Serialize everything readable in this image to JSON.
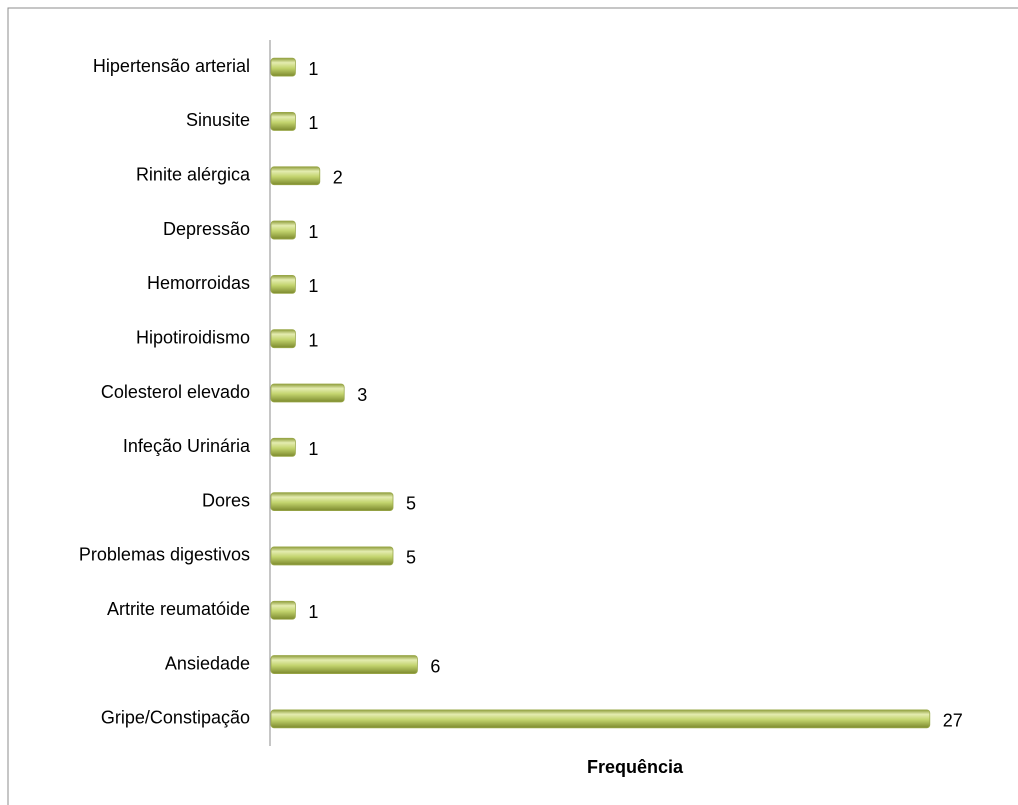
{
  "chart_data": {
    "type": "bar",
    "orientation": "horizontal",
    "categories": [
      "Hipertensão arterial",
      "Sinusite",
      "Rinite alérgica",
      "Depressão",
      "Hemorroidas",
      "Hipotiroidismo",
      "Colesterol elevado",
      "Infeção Urinária",
      "Dores",
      "Problemas digestivos",
      "Artrite reumatóide",
      "Ansiedade",
      "Gripe/Constipação"
    ],
    "values": [
      1,
      1,
      2,
      1,
      1,
      1,
      3,
      1,
      5,
      5,
      1,
      6,
      27
    ],
    "color": "#c3d46e",
    "xlim": [
      0,
      30
    ],
    "xlabel": "Frequência"
  }
}
